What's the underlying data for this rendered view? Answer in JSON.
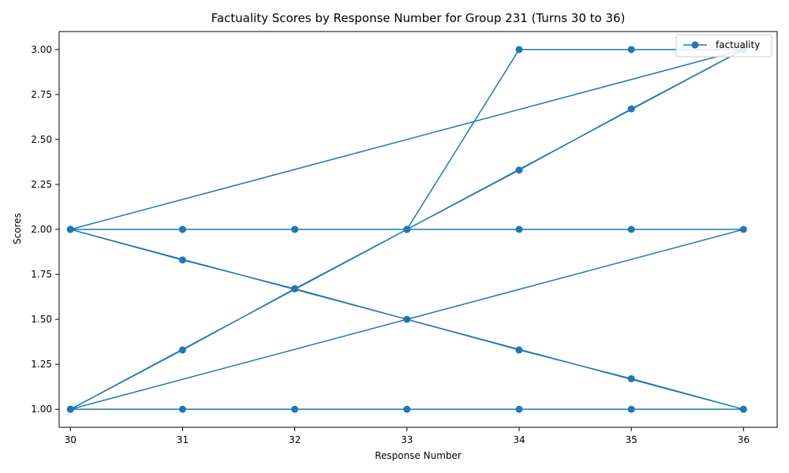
{
  "chart_data": {
    "type": "line",
    "title": "Factuality Scores by Response Number for Group 231 (Turns 30 to 36)",
    "xlabel": "Response Number",
    "ylabel": "Scores",
    "xlim": [
      29.9,
      36.3
    ],
    "ylim": [
      0.9,
      3.1
    ],
    "x_ticks": [
      30,
      31,
      32,
      33,
      34,
      35,
      36
    ],
    "y_ticks": [
      1.0,
      1.25,
      1.5,
      1.75,
      2.0,
      2.25,
      2.5,
      2.75,
      3.0
    ],
    "y_tick_labels": [
      "1.00",
      "1.25",
      "1.50",
      "1.75",
      "2.00",
      "2.25",
      "2.50",
      "2.75",
      "3.00"
    ],
    "legend_position": "upper right",
    "grid": false,
    "color": "#1f77b4",
    "series": [
      {
        "name": "factuality",
        "x": [
          30,
          31,
          32,
          33,
          34,
          35,
          36,
          30,
          31,
          32,
          33,
          34,
          35,
          36,
          30,
          31,
          32,
          33,
          34,
          35,
          36,
          30,
          31,
          32,
          33,
          34,
          35,
          36,
          30,
          31,
          32,
          33,
          34,
          35,
          36
        ],
        "y": [
          2,
          2,
          2,
          2,
          3,
          3,
          3,
          1,
          1,
          1,
          1,
          1,
          1,
          1,
          2,
          2,
          2,
          2,
          2,
          2,
          2,
          1,
          1.33,
          1.67,
          2,
          2.33,
          2.67,
          3,
          2,
          1.83,
          1.67,
          1.5,
          1.33,
          1.17,
          1
        ]
      }
    ]
  }
}
